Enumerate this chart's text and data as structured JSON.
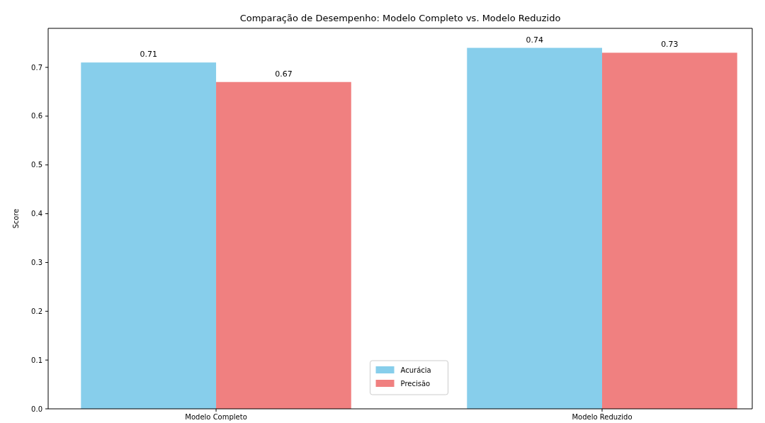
{
  "chart_data": {
    "type": "bar",
    "title": "Comparação de Desempenho: Modelo Completo vs. Modelo Reduzido",
    "ylabel": "Score",
    "categories": [
      "Modelo Completo",
      "Modelo Reduzido"
    ],
    "series": [
      {
        "name": "Acurácia",
        "color": "#87ceeb",
        "values": [
          0.71,
          0.74
        ]
      },
      {
        "name": "Precisão",
        "color": "#f08080",
        "values": [
          0.67,
          0.73
        ]
      }
    ],
    "ylim": [
      0,
      0.78
    ],
    "yticks": [
      {
        "value": 0,
        "label": "0.0"
      },
      0.1,
      0.2,
      0.3,
      0.4,
      0.5,
      0.6,
      0.7
    ],
    "data_labels": true,
    "legend": "bottom"
  }
}
